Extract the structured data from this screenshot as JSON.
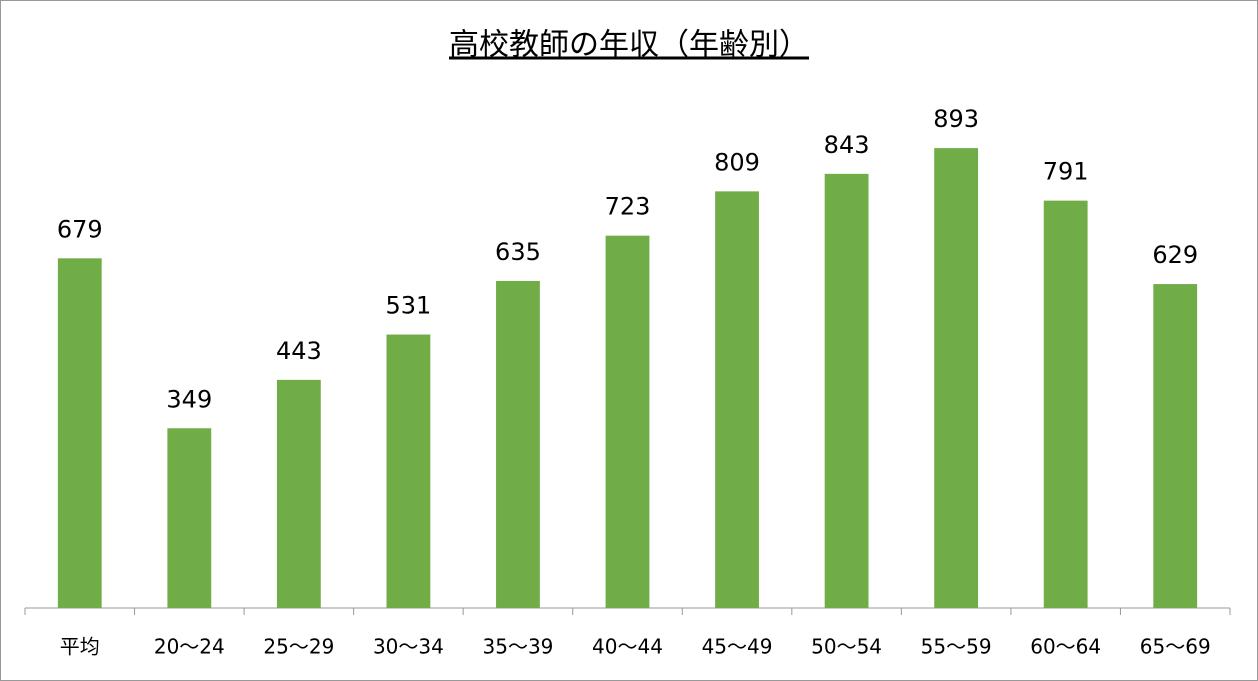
{
  "chart_data": {
    "type": "bar",
    "title": "高校教師の年収（年齢別）",
    "categories": [
      "平均",
      "20〜24",
      "25〜29",
      "30〜34",
      "35〜39",
      "40〜44",
      "45〜49",
      "50〜54",
      "55〜59",
      "60〜64",
      "65〜69"
    ],
    "values": [
      679,
      349,
      443,
      531,
      635,
      723,
      809,
      843,
      893,
      791,
      629
    ],
    "color": "#70ad47",
    "ylim": [
      0,
      1000
    ]
  }
}
